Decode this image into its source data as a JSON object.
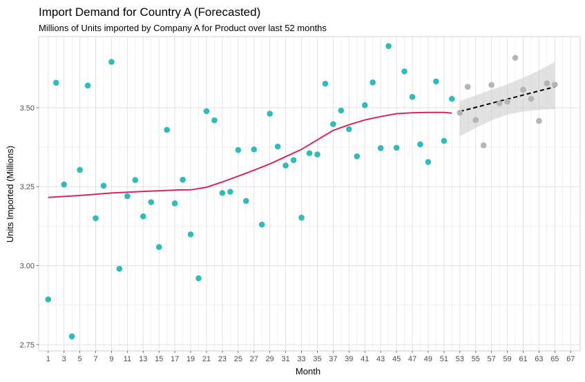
{
  "chart_data": {
    "type": "scatter",
    "title": "Import Demand for Country A (Forecasted)",
    "subtitle": "Millions of Units imported by Company A for Product over last 52 months",
    "xlabel": "Month",
    "ylabel": "Units Imported (Millions)",
    "xlim": [
      -0.2,
      68.2
    ],
    "ylim": [
      2.73,
      3.725
    ],
    "x_ticks": [
      1,
      3,
      5,
      7,
      9,
      11,
      13,
      15,
      17,
      19,
      21,
      23,
      25,
      27,
      29,
      31,
      33,
      35,
      37,
      39,
      41,
      43,
      45,
      47,
      49,
      51,
      53,
      55,
      57,
      59,
      61,
      63,
      65,
      67
    ],
    "x_tick_labels": [
      "1",
      "3",
      "5",
      "7",
      "9",
      "11",
      "13",
      "15",
      "17",
      "19",
      "21",
      "23",
      "25",
      "27",
      "29",
      "31",
      "33",
      "35",
      "37",
      "39",
      "41",
      "43",
      "45",
      "47",
      "49",
      "51",
      "53",
      "55",
      "57",
      "59",
      "61",
      "63",
      "65",
      "67"
    ],
    "y_ticks": [
      2.75,
      3.0,
      3.25,
      3.5
    ],
    "y_tick_labels": [
      "2.75",
      "3.00",
      "3.25",
      "3.50"
    ],
    "grid": true,
    "legend": "none",
    "colors": {
      "observed": "#2ebbbc",
      "forecast": "#b4b4b4",
      "smooth": "#d6255a",
      "trend": "#000000",
      "ribbon": "#c8c8c8",
      "grid": "#e1e1e1",
      "panel_border": "#d0d0d0"
    },
    "series": [
      {
        "kind": "observed",
        "x": [
          1,
          2,
          3,
          4,
          5,
          6,
          7,
          8,
          9,
          10,
          11,
          12,
          13,
          14,
          15,
          16,
          17,
          18,
          19,
          20,
          21,
          22,
          23,
          24,
          25,
          26,
          27,
          28,
          29,
          30,
          31,
          32,
          33,
          34,
          35,
          36,
          37,
          38,
          39,
          40,
          41,
          42,
          43,
          44,
          45,
          46,
          47,
          48,
          49,
          50,
          51,
          52
        ],
        "y": [
          2.893,
          3.579,
          3.257,
          2.776,
          3.303,
          3.57,
          3.15,
          3.253,
          3.645,
          2.99,
          3.22,
          3.271,
          3.156,
          3.201,
          3.059,
          3.43,
          3.197,
          3.272,
          3.099,
          2.96,
          3.489,
          3.46,
          3.23,
          3.234,
          3.366,
          3.205,
          3.368,
          3.13,
          3.481,
          3.377,
          3.317,
          3.334,
          3.152,
          3.356,
          3.352,
          3.576,
          3.448,
          3.491,
          3.432,
          3.346,
          3.508,
          3.58,
          3.372,
          3.695,
          3.373,
          3.615,
          3.534,
          3.384,
          3.328,
          3.583,
          3.395,
          3.528
        ]
      },
      {
        "kind": "forecast",
        "x": [
          53,
          54,
          55,
          56,
          57,
          58,
          59,
          60,
          61,
          62,
          63,
          64,
          65
        ],
        "y": [
          3.484,
          3.566,
          3.461,
          3.381,
          3.572,
          3.514,
          3.519,
          3.658,
          3.557,
          3.528,
          3.458,
          3.577,
          3.573
        ]
      },
      {
        "kind": "smooth",
        "x": [
          1,
          5,
          9,
          13,
          17,
          19,
          21,
          23,
          25,
          27,
          29,
          31,
          33,
          35,
          37,
          39,
          41,
          43,
          45,
          47,
          49,
          51,
          52
        ],
        "y": [
          3.216,
          3.222,
          3.23,
          3.235,
          3.239,
          3.24,
          3.248,
          3.265,
          3.283,
          3.302,
          3.322,
          3.345,
          3.368,
          3.398,
          3.428,
          3.446,
          3.461,
          3.472,
          3.481,
          3.484,
          3.485,
          3.485,
          3.483
        ]
      },
      {
        "kind": "trend",
        "x": [
          53,
          65
        ],
        "y": [
          3.488,
          3.566
        ]
      },
      {
        "kind": "ribbon",
        "x": [
          53,
          55,
          57,
          59,
          61,
          63,
          65
        ],
        "upper": [
          3.521,
          3.539,
          3.557,
          3.574,
          3.595,
          3.618,
          3.645
        ],
        "lower": [
          3.41,
          3.436,
          3.46,
          3.478,
          3.488,
          3.493,
          3.496
        ]
      }
    ]
  }
}
